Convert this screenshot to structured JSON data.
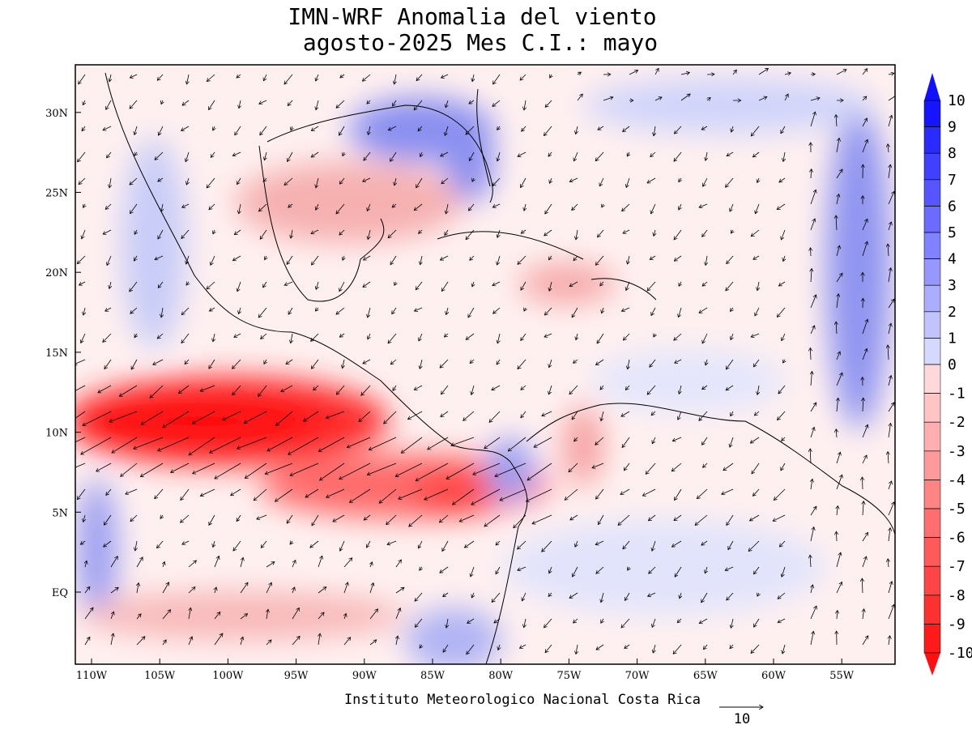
{
  "title": [
    "IMN-WRF Anomalia del viento",
    "agosto-2025 Mes C.I.: mayo"
  ],
  "lon_ticks": [
    {
      "value": -110,
      "label": "110W"
    },
    {
      "value": -105,
      "label": "105W"
    },
    {
      "value": -100,
      "label": "100W"
    },
    {
      "value": -95,
      "label": "95W"
    },
    {
      "value": -90,
      "label": "90W"
    },
    {
      "value": -85,
      "label": "85W"
    },
    {
      "value": -80,
      "label": "80W"
    },
    {
      "value": -75,
      "label": "75W"
    },
    {
      "value": -70,
      "label": "70W"
    },
    {
      "value": -65,
      "label": "65W"
    },
    {
      "value": -60,
      "label": "60W"
    },
    {
      "value": -55,
      "label": "55W"
    }
  ],
  "lat_ticks": [
    {
      "value": 30,
      "label": "30N"
    },
    {
      "value": 25,
      "label": "25N"
    },
    {
      "value": 20,
      "label": "20N"
    },
    {
      "value": 15,
      "label": "15N"
    },
    {
      "value": 10,
      "label": "10N"
    },
    {
      "value": 5,
      "label": "5N"
    },
    {
      "value": 0,
      "label": "EQ"
    }
  ],
  "colorbar": [
    10,
    9,
    8,
    7,
    6,
    5,
    4,
    3,
    2,
    1,
    0,
    -1,
    -2,
    -3,
    -4,
    -5,
    -6,
    -7,
    -8,
    -9,
    -10
  ],
  "footer": "Instituto Meteorologico Nacional Costa Rica",
  "reference_vector": 10
}
